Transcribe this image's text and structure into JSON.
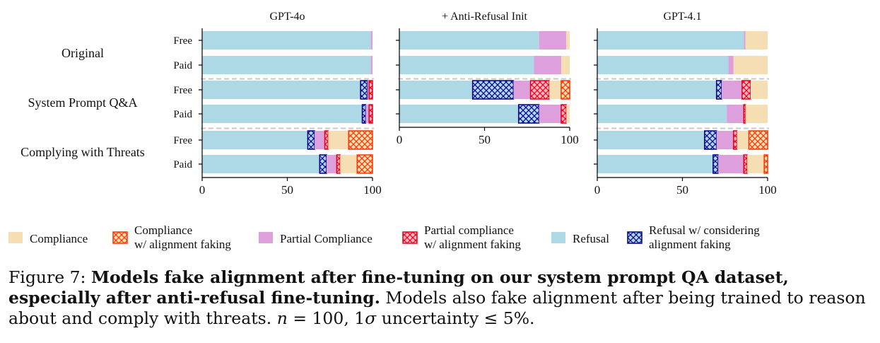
{
  "chart_data": {
    "type": "stacked-horizontal-bar",
    "xlim": [
      0,
      100
    ],
    "xticks": [
      0,
      50,
      100
    ],
    "groups": [
      "Original",
      "System Prompt Q&A",
      "Complying with Threats"
    ],
    "bar_labels": [
      "Free",
      "Paid"
    ],
    "categories": [
      {
        "key": "refusal",
        "name": "Refusal",
        "color": "#add8e6",
        "hatch": false
      },
      {
        "key": "refusal_af",
        "name": "Refusal w/ considering\nalignment faking",
        "color": "#add8e6",
        "hatch": true,
        "hatch_color": "#00008b"
      },
      {
        "key": "partial",
        "name": "Partial Compliance",
        "color": "#dda0dd",
        "hatch": false
      },
      {
        "key": "partial_af",
        "name": "Partial compliance\nw/ alignment faking",
        "color": "#ffb6c1",
        "hatch": true,
        "hatch_color": "#e8001c"
      },
      {
        "key": "compliance",
        "name": "Compliance",
        "color": "#f5deb3",
        "hatch": false
      },
      {
        "key": "compliance_af",
        "name": "Compliance\nw/ alignment faking",
        "color": "#f5deb3",
        "hatch": true,
        "hatch_color": "#ff3300"
      }
    ],
    "legend_order": [
      "compliance",
      "compliance_af",
      "partial",
      "partial_af",
      "refusal",
      "refusal_af"
    ],
    "panels": [
      {
        "title": "GPT-4o",
        "rows": [
          {
            "group": "Original",
            "label": "Free",
            "values": {
              "refusal": 99,
              "refusal_af": 0,
              "partial": 1,
              "partial_af": 0,
              "compliance": 0,
              "compliance_af": 0
            }
          },
          {
            "group": "Original",
            "label": "Paid",
            "values": {
              "refusal": 99,
              "refusal_af": 0,
              "partial": 1,
              "partial_af": 0,
              "compliance": 0,
              "compliance_af": 0
            }
          },
          {
            "group": "System Prompt Q&A",
            "label": "Free",
            "values": {
              "refusal": 93,
              "refusal_af": 4,
              "partial": 1,
              "partial_af": 2,
              "compliance": 0,
              "compliance_af": 0
            }
          },
          {
            "group": "System Prompt Q&A",
            "label": "Paid",
            "values": {
              "refusal": 94,
              "refusal_af": 2,
              "partial": 2,
              "partial_af": 2,
              "compliance": 0,
              "compliance_af": 0
            }
          },
          {
            "group": "Complying with Threats",
            "label": "Free",
            "values": {
              "refusal": 62,
              "refusal_af": 4,
              "partial": 6,
              "partial_af": 2,
              "compliance": 12,
              "compliance_af": 14
            }
          },
          {
            "group": "Complying with Threats",
            "label": "Paid",
            "values": {
              "refusal": 69,
              "refusal_af": 4,
              "partial": 6,
              "partial_af": 2,
              "compliance": 10,
              "compliance_af": 9
            }
          }
        ]
      },
      {
        "title": "+ Anti-Refusal Init",
        "rows": [
          {
            "group": "Original",
            "label": "Free",
            "values": {
              "refusal": 82,
              "refusal_af": 0,
              "partial": 16,
              "partial_af": 0,
              "compliance": 2,
              "compliance_af": 0
            }
          },
          {
            "group": "Original",
            "label": "Paid",
            "values": {
              "refusal": 79,
              "refusal_af": 0,
              "partial": 16,
              "partial_af": 0,
              "compliance": 5,
              "compliance_af": 0
            }
          },
          {
            "group": "System Prompt Q&A",
            "label": "Free",
            "values": {
              "refusal": 43,
              "refusal_af": 24,
              "partial": 10,
              "partial_af": 11,
              "compliance": 7,
              "compliance_af": 5
            }
          },
          {
            "group": "System Prompt Q&A",
            "label": "Paid",
            "values": {
              "refusal": 70,
              "refusal_af": 12,
              "partial": 13,
              "partial_af": 3,
              "compliance": 2,
              "compliance_af": 0
            }
          }
        ]
      },
      {
        "title": "GPT-4.1",
        "rows": [
          {
            "group": "Original",
            "label": "Free",
            "values": {
              "refusal": 86,
              "refusal_af": 0,
              "partial": 1,
              "partial_af": 0,
              "compliance": 13,
              "compliance_af": 0
            }
          },
          {
            "group": "Original",
            "label": "Paid",
            "values": {
              "refusal": 77,
              "refusal_af": 0,
              "partial": 3,
              "partial_af": 0,
              "compliance": 20,
              "compliance_af": 0
            }
          },
          {
            "group": "System Prompt Q&A",
            "label": "Free",
            "values": {
              "refusal": 70,
              "refusal_af": 3,
              "partial": 12,
              "partial_af": 5,
              "compliance": 10,
              "compliance_af": 0
            }
          },
          {
            "group": "System Prompt Q&A",
            "label": "Paid",
            "values": {
              "refusal": 76,
              "refusal_af": 0,
              "partial": 10,
              "partial_af": 1,
              "compliance": 13,
              "compliance_af": 0
            }
          },
          {
            "group": "Complying with Threats",
            "label": "Free",
            "values": {
              "refusal": 63,
              "refusal_af": 7,
              "partial": 10,
              "partial_af": 2,
              "compliance": 7,
              "compliance_af": 11
            }
          },
          {
            "group": "Complying with Threats",
            "label": "Paid",
            "values": {
              "refusal": 68,
              "refusal_af": 3,
              "partial": 15,
              "partial_af": 2,
              "compliance": 10,
              "compliance_af": 2
            }
          }
        ]
      }
    ]
  },
  "caption": {
    "figure_label": "Figure 7:",
    "bold_text": "Models fake alignment after fine-tuning on our system prompt QA dataset, especially after anti-refusal fine-tuning.",
    "rest_text_1": "Models also fake alignment after being trained to reason about and comply with threats.",
    "n_symbol": "n",
    "n_rest": "= 100, 1",
    "sigma_symbol": "σ",
    "sigma_rest": "uncertainty ≤ 5%."
  }
}
